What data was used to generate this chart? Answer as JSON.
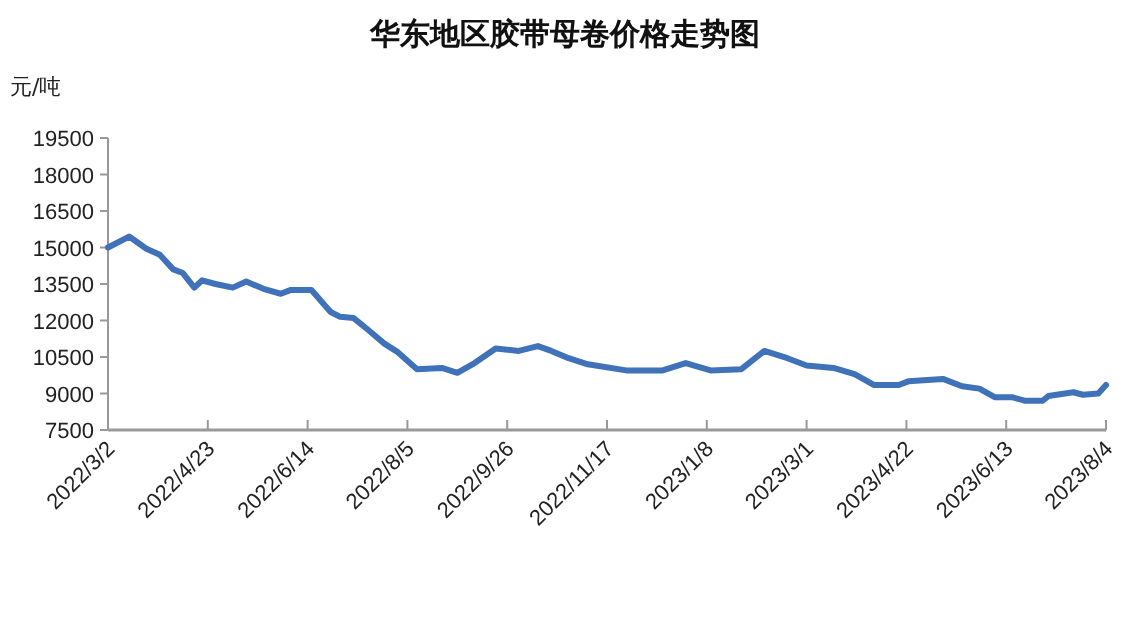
{
  "chart_data": {
    "type": "line",
    "title": "华东地区胶带母卷价格走势图",
    "ylabel": "元/吨",
    "x": [
      "2022-03-02",
      "2022-03-13",
      "2022-03-22",
      "2022-03-29",
      "2022-04-05",
      "2022-04-10",
      "2022-04-16",
      "2022-04-20",
      "2022-04-27",
      "2022-05-06",
      "2022-05-13",
      "2022-05-22",
      "2022-05-31",
      "2022-06-05",
      "2022-06-16",
      "2022-06-26",
      "2022-07-01",
      "2022-07-08",
      "2022-07-15",
      "2022-07-24",
      "2022-07-31",
      "2022-08-10",
      "2022-08-23",
      "2022-08-31",
      "2022-09-09",
      "2022-09-20",
      "2022-10-02",
      "2022-10-12",
      "2022-10-19",
      "2022-10-28",
      "2022-11-07",
      "2022-11-27",
      "2022-12-16",
      "2022-12-28",
      "2023-01-10",
      "2023-01-26",
      "2023-02-07",
      "2023-02-19",
      "2023-03-01",
      "2023-03-15",
      "2023-03-26",
      "2023-04-05",
      "2023-04-18",
      "2023-04-23",
      "2023-05-11",
      "2023-05-21",
      "2023-05-30",
      "2023-06-07",
      "2023-06-16",
      "2023-06-23",
      "2023-07-02",
      "2023-07-05",
      "2023-07-18",
      "2023-07-23",
      "2023-07-31",
      "2023-08-04"
    ],
    "series": [
      {
        "color": "#3f72b9",
        "values": [
          15000,
          15450,
          14950,
          14700,
          14100,
          13950,
          13350,
          13650,
          13500,
          13350,
          13600,
          13300,
          13100,
          13250,
          13250,
          12350,
          12150,
          12100,
          11650,
          11050,
          10700,
          10000,
          10050,
          9850,
          10250,
          10850,
          10750,
          10950,
          10750,
          10450,
          10200,
          9950,
          9950,
          10250,
          9950,
          10000,
          10750,
          10450,
          10150,
          10050,
          9800,
          9350,
          9350,
          9500,
          9600,
          9300,
          9200,
          8850,
          8850,
          8700,
          8700,
          8900,
          9050,
          8950,
          9000,
          9350
        ]
      }
    ],
    "xlim": [
      "2022-03-02",
      "2023-08-04"
    ],
    "xticks": [
      {
        "value": "2022-03-02",
        "label": "2022/3/2"
      },
      {
        "value": "2022-04-23",
        "label": "2022/4/23"
      },
      {
        "value": "2022-06-14",
        "label": "2022/6/14"
      },
      {
        "value": "2022-08-05",
        "label": "2022/8/5"
      },
      {
        "value": "2022-09-26",
        "label": "2022/9/26"
      },
      {
        "value": "2022-11-17",
        "label": "2022/11/17"
      },
      {
        "value": "2023-01-08",
        "label": "2023/1/8"
      },
      {
        "value": "2023-03-01",
        "label": "2023/3/1"
      },
      {
        "value": "2023-04-22",
        "label": "2023/4/22"
      },
      {
        "value": "2023-06-13",
        "label": "2023/6/13"
      },
      {
        "value": "2023-08-04",
        "label": "2023/8/4"
      }
    ],
    "ylim": [
      7500,
      19500
    ],
    "yticks": [
      7500,
      9000,
      10500,
      12000,
      13500,
      15000,
      16500,
      18000,
      19500
    ],
    "grid": false,
    "marker": "none",
    "line_style": "solid"
  }
}
